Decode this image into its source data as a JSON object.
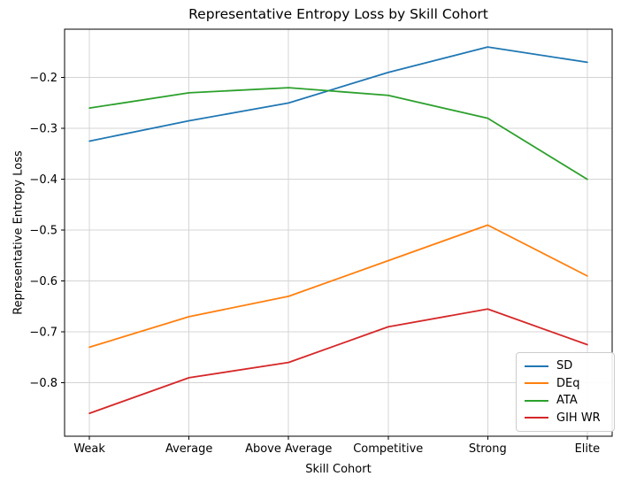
{
  "chart_data": {
    "type": "line",
    "title": "Representative Entropy Loss by Skill Cohort",
    "xlabel": "Skill Cohort",
    "ylabel": "Representative Entropy Loss",
    "categories": [
      "Weak",
      "Average",
      "Above Average",
      "Competitive",
      "Strong",
      "Elite"
    ],
    "series": [
      {
        "name": "SD",
        "color": "#1f77b4",
        "values": [
          -0.325,
          -0.285,
          -0.25,
          -0.19,
          -0.14,
          -0.17
        ]
      },
      {
        "name": "DEq",
        "color": "#ff7f0e",
        "values": [
          -0.73,
          -0.67,
          -0.63,
          -0.56,
          -0.49,
          -0.59
        ]
      },
      {
        "name": "ATA",
        "color": "#2ca02c",
        "values": [
          -0.26,
          -0.23,
          -0.22,
          -0.235,
          -0.28,
          -0.4
        ]
      },
      {
        "name": "GIH WR",
        "color": "#d62728",
        "values": [
          -0.86,
          -0.79,
          -0.76,
          -0.69,
          -0.655,
          -0.725
        ]
      }
    ],
    "yticks": {
      "values": [
        -0.2,
        -0.3,
        -0.4,
        -0.5,
        -0.6,
        -0.7,
        -0.8
      ],
      "labels": [
        "−0.2",
        "−0.3",
        "−0.4",
        "−0.5",
        "−0.6",
        "−0.7",
        "−0.8"
      ]
    },
    "ylim": [
      -0.905,
      -0.105
    ],
    "xlim": [
      -0.25,
      5.25
    ],
    "grid": true,
    "legend": {
      "position": "lower right",
      "entries": [
        "SD",
        "DEq",
        "ATA",
        "GIH WR"
      ]
    }
  }
}
